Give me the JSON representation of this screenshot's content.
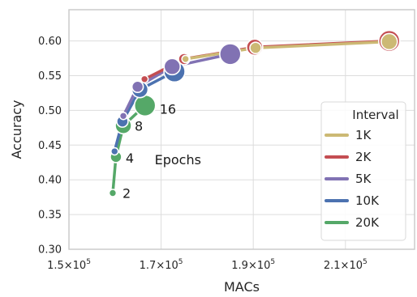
{
  "chart_data": {
    "type": "line",
    "title": "",
    "xlabel": "MACs",
    "ylabel": "Accuracy",
    "xlim": [
      150000,
      225000
    ],
    "ylim": [
      0.3,
      0.645
    ],
    "x_ticks": [
      {
        "value": 150000,
        "mantissa": "1.5",
        "exp": "5"
      },
      {
        "value": 170000,
        "mantissa": "1.7",
        "exp": "5"
      },
      {
        "value": 190000,
        "mantissa": "1.9",
        "exp": "5"
      },
      {
        "value": 210000,
        "mantissa": "2.1",
        "exp": "5"
      }
    ],
    "y_ticks": [
      "0.30",
      "0.35",
      "0.40",
      "0.45",
      "0.50",
      "0.55",
      "0.60"
    ],
    "grid": true,
    "legend": {
      "title": "Interval",
      "position": "right"
    },
    "series": [
      {
        "name": "20K",
        "color": "#55a868",
        "points": [
          {
            "x": 159500,
            "y": 0.381,
            "size": 1
          },
          {
            "x": 160200,
            "y": 0.433,
            "size": 2
          },
          {
            "x": 161800,
            "y": 0.478,
            "size": 3
          },
          {
            "x": 166500,
            "y": 0.507,
            "size": 4
          }
        ]
      },
      {
        "name": "10K",
        "color": "#4c72b0",
        "points": [
          {
            "x": 159900,
            "y": 0.441,
            "size": 1
          },
          {
            "x": 161600,
            "y": 0.484,
            "size": 2
          },
          {
            "x": 165400,
            "y": 0.53,
            "size": 3
          },
          {
            "x": 172900,
            "y": 0.556,
            "size": 4
          }
        ]
      },
      {
        "name": "5K",
        "color": "#8172b3",
        "points": [
          {
            "x": 161800,
            "y": 0.492,
            "size": 1
          },
          {
            "x": 164900,
            "y": 0.534,
            "size": 2
          },
          {
            "x": 172400,
            "y": 0.563,
            "size": 3
          },
          {
            "x": 185000,
            "y": 0.581,
            "size": 4
          }
        ]
      },
      {
        "name": "2K",
        "color": "#c44e52",
        "points": [
          {
            "x": 166400,
            "y": 0.545,
            "size": 1
          },
          {
            "x": 175000,
            "y": 0.574,
            "size": 2
          },
          {
            "x": 190300,
            "y": 0.591,
            "size": 3
          },
          {
            "x": 219500,
            "y": 0.6,
            "size": 4
          }
        ]
      },
      {
        "name": "1K",
        "color": "#ccb974",
        "points": [
          {
            "x": 175300,
            "y": 0.574,
            "size": 1
          },
          {
            "x": 190500,
            "y": 0.59,
            "size": 2
          },
          {
            "x": 219500,
            "y": 0.599,
            "size": 3
          }
        ]
      }
    ],
    "epoch_labels": [
      {
        "text": "2",
        "x": 159500,
        "y": 0.381
      },
      {
        "text": "4",
        "x": 160200,
        "y": 0.433
      },
      {
        "text": "8",
        "x": 161800,
        "y": 0.478
      },
      {
        "text": "16",
        "x": 166500,
        "y": 0.507
      }
    ],
    "epochs_annotation": {
      "text": "Epochs",
      "x": 173000,
      "y": 0.428
    }
  }
}
